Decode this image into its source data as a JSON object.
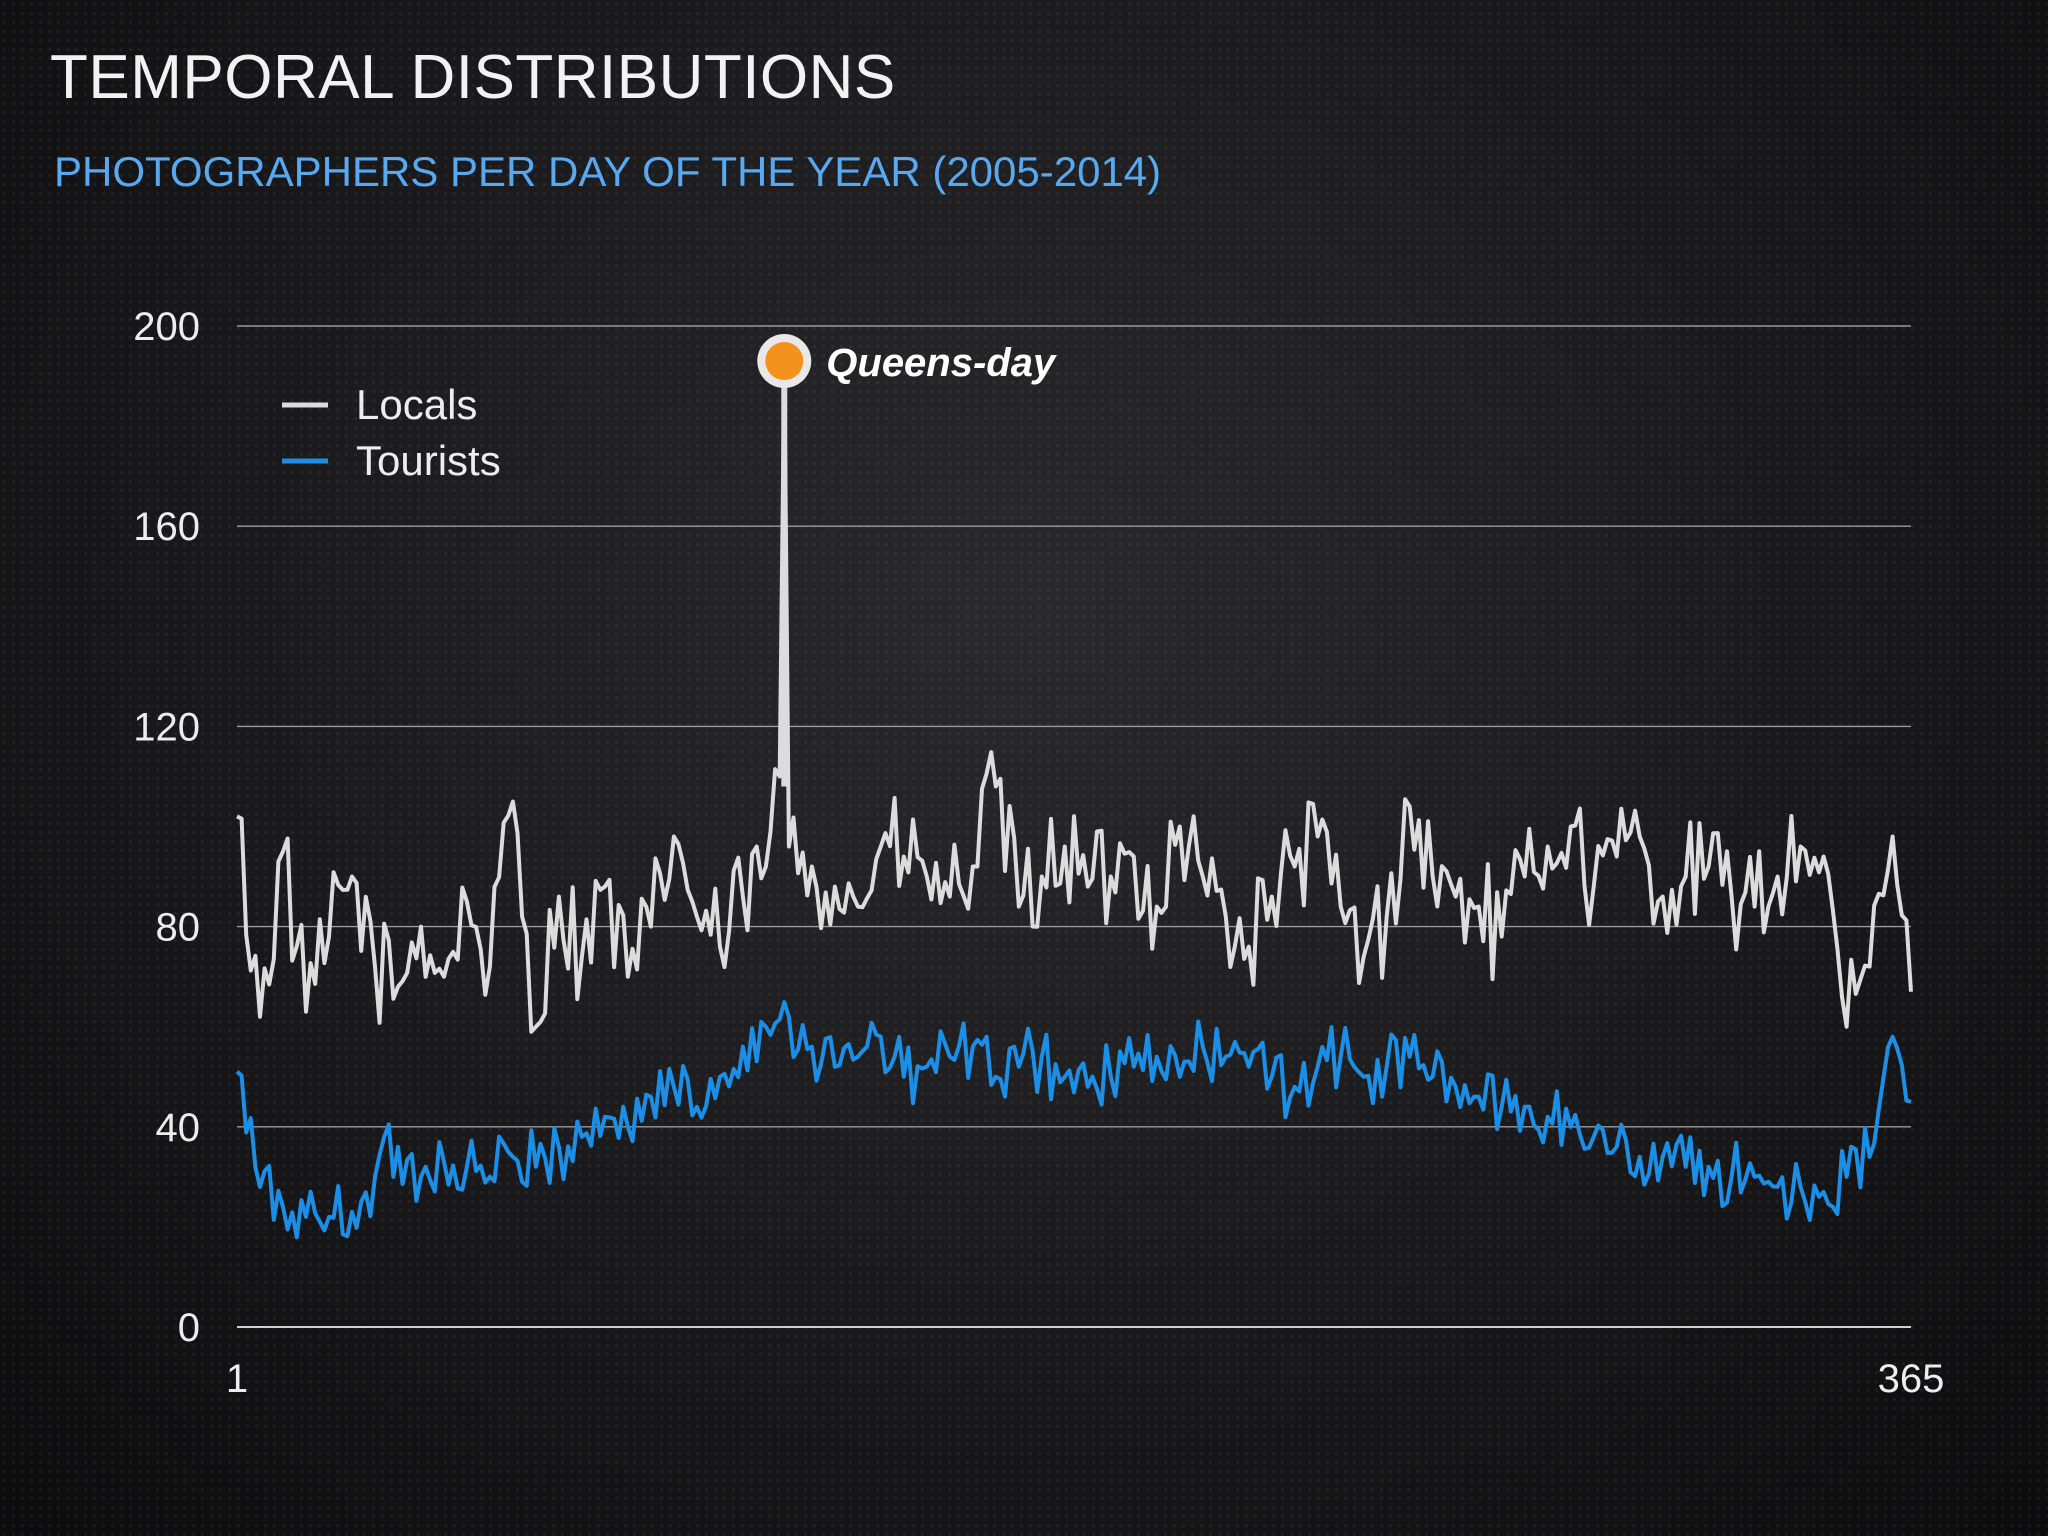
{
  "slide": {
    "title": "TEMPORAL DISTRIBUTIONS",
    "subtitle": "PHOTOGRAPHERS PER DAY OF THE YEAR (2005-2014)"
  },
  "chart_data": {
    "type": "line",
    "title": "TEMPORAL DISTRIBUTIONS",
    "subtitle": "PHOTOGRAPHERS PER DAY OF THE YEAR (2005-2014)",
    "xlabel": "",
    "ylabel": "",
    "xlim": [
      1,
      365
    ],
    "ylim": [
      0,
      200
    ],
    "x_ticks": [
      1,
      365
    ],
    "y_ticks": [
      0,
      40,
      80,
      120,
      160,
      200
    ],
    "grid": "horizontal",
    "legend_position": "top-left",
    "annotation": {
      "label": "Queens-day",
      "x": 120,
      "y": 193,
      "color": "#f5921e"
    },
    "series": [
      {
        "name": "Locals",
        "color": "#dcdcdc",
        "x": [
          1,
          6,
          11,
          16,
          21,
          26,
          31,
          36,
          41,
          46,
          51,
          56,
          61,
          66,
          71,
          76,
          81,
          86,
          91,
          96,
          101,
          106,
          111,
          116,
          119,
          120,
          121,
          126,
          131,
          136,
          141,
          146,
          151,
          156,
          161,
          166,
          171,
          176,
          181,
          186,
          191,
          196,
          201,
          206,
          211,
          216,
          221,
          226,
          231,
          236,
          241,
          246,
          251,
          256,
          261,
          266,
          271,
          276,
          281,
          286,
          291,
          296,
          301,
          306,
          311,
          316,
          321,
          326,
          331,
          336,
          341,
          346,
          351,
          356,
          361,
          365
        ],
        "values": [
          102,
          62,
          95,
          63,
          78,
          90,
          72,
          68,
          80,
          70,
          85,
          72,
          105,
          60,
          86,
          74,
          88,
          70,
          80,
          98,
          82,
          76,
          86,
          92,
          110,
          193,
          96,
          92,
          88,
          84,
          96,
          94,
          90,
          86,
          92,
          108,
          84,
          90,
          96,
          88,
          90,
          94,
          84,
          100,
          90,
          82,
          76,
          86,
          92,
          98,
          84,
          74,
          82,
          104,
          90,
          86,
          84,
          78,
          90,
          96,
          100,
          88,
          94,
          98,
          86,
          90,
          92,
          86,
          84,
          90,
          96,
          94,
          60,
          72,
          98,
          67
        ]
      },
      {
        "name": "Tourists",
        "color": "#1b8ee6",
        "x": [
          1,
          6,
          11,
          16,
          21,
          26,
          31,
          36,
          41,
          46,
          51,
          56,
          61,
          66,
          71,
          76,
          81,
          86,
          91,
          96,
          101,
          106,
          111,
          116,
          121,
          126,
          131,
          136,
          141,
          146,
          151,
          156,
          161,
          166,
          171,
          176,
          181,
          186,
          191,
          196,
          201,
          206,
          211,
          216,
          221,
          226,
          231,
          236,
          241,
          246,
          251,
          256,
          261,
          266,
          271,
          276,
          281,
          286,
          291,
          296,
          301,
          306,
          311,
          316,
          321,
          326,
          331,
          336,
          341,
          346,
          351,
          356,
          361,
          365
        ],
        "values": [
          51,
          28,
          24,
          22,
          22,
          23,
          30,
          36,
          30,
          33,
          32,
          30,
          34,
          32,
          36,
          38,
          42,
          40,
          46,
          48,
          44,
          50,
          56,
          60,
          62,
          56,
          52,
          54,
          58,
          50,
          52,
          54,
          56,
          50,
          52,
          54,
          50,
          48,
          50,
          52,
          54,
          50,
          56,
          54,
          52,
          50,
          48,
          52,
          54,
          50,
          52,
          54,
          50,
          48,
          46,
          44,
          44,
          42,
          40,
          38,
          36,
          34,
          34,
          32,
          32,
          30,
          30,
          28,
          28,
          27,
          30,
          34,
          58,
          45
        ]
      }
    ]
  }
}
